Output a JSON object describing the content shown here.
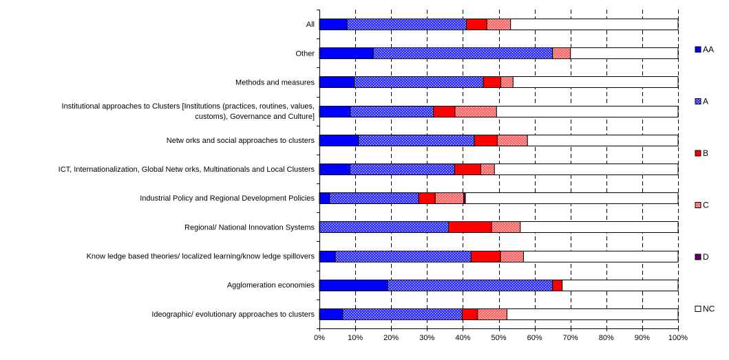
{
  "chart_data": {
    "type": "bar",
    "orientation": "horizontal",
    "stacked": true,
    "percent": true,
    "categories": [
      "All",
      "Other",
      "Methods and measures",
      "Institutional approaches to Clusters [Institutions (practices, routines, values, customs), Governance and Culture]",
      "Netw orks and social approaches to clusters",
      "ICT, Internationalization, Global Netw orks, Multinationals and Local Clusters",
      "Industrial Policy and Regional Development Policies",
      "Regional/ National Innovation Systems",
      "Know ledge based theories/ localized learning/know ledge spillovers",
      "Agglomeration economies",
      "Ideographic/ evolutionary approaches to clusters"
    ],
    "category_lines": [
      [
        "All"
      ],
      [
        "Other"
      ],
      [
        "Methods and measures"
      ],
      [
        "Institutional approaches to Clusters [Institutions (practices, routines, values,",
        "customs), Governance and Culture]"
      ],
      [
        "Netw orks and social approaches to clusters"
      ],
      [
        "ICT, Internationalization, Global Netw orks, Multinationals and Local Clusters"
      ],
      [
        "Industrial Policy and Regional Development Policies"
      ],
      [
        "Regional/ National Innovation Systems"
      ],
      [
        "Know ledge based theories/ localized learning/know ledge spillovers"
      ],
      [
        "Agglomeration economies"
      ],
      [
        "Ideographic/ evolutionary approaches to clusters"
      ]
    ],
    "series": [
      {
        "name": "AA",
        "color": "#0000ff",
        "pattern": "solid",
        "values": [
          7.7,
          15.0,
          9.7,
          8.6,
          10.9,
          8.5,
          2.8,
          0.0,
          4.4,
          19.0,
          6.5
        ]
      },
      {
        "name": "A",
        "color": "#3333ff",
        "pattern": "dotted-blue",
        "values": [
          33.3,
          50.0,
          36.0,
          23.2,
          32.3,
          29.2,
          24.9,
          36.0,
          37.9,
          46.0,
          33.3
        ]
      },
      {
        "name": "B",
        "color": "#ff0000",
        "pattern": "solid",
        "values": [
          5.7,
          0.0,
          4.9,
          6.0,
          6.4,
          7.3,
          4.6,
          12.0,
          8.2,
          2.7,
          4.3
        ]
      },
      {
        "name": "C",
        "color": "#ff5555",
        "pattern": "dotted-red",
        "values": [
          6.6,
          5.0,
          3.4,
          11.6,
          8.4,
          3.8,
          7.9,
          8.0,
          6.4,
          0.0,
          8.2
        ]
      },
      {
        "name": "D",
        "color": "#660066",
        "pattern": "solid",
        "values": [
          0.0,
          0.0,
          0.0,
          0.0,
          0.0,
          0.0,
          0.5,
          0.0,
          0.0,
          0.0,
          0.0
        ]
      },
      {
        "name": "NC",
        "color": "#ffffff",
        "pattern": "solid",
        "values": [
          46.7,
          30.0,
          46.0,
          50.6,
          42.0,
          51.2,
          59.3,
          44.0,
          43.1,
          32.3,
          47.7
        ]
      }
    ],
    "x_ticks": [
      "0%",
      "10%",
      "20%",
      "30%",
      "40%",
      "50%",
      "60%",
      "70%",
      "80%",
      "90%",
      "100%"
    ],
    "xlim": [
      0,
      100
    ],
    "grid": "vertical dashed",
    "legend_position": "right",
    "title": "",
    "xlabel": "",
    "ylabel": ""
  }
}
